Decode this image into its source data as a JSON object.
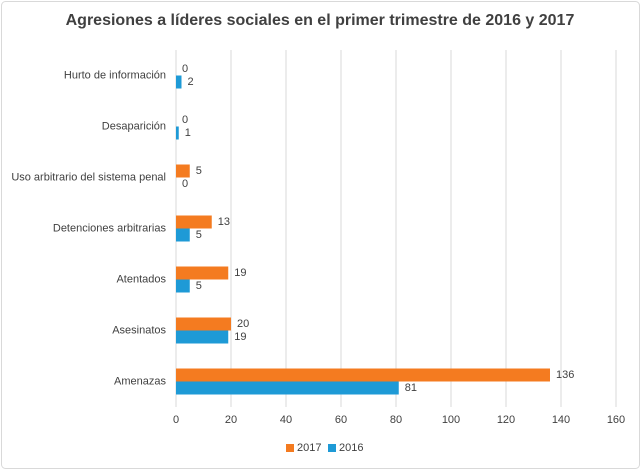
{
  "chart_data": {
    "type": "bar",
    "orientation": "horizontal",
    "title": "Agresiones a líderes sociales en el primer trimestre de 2016 y 2017",
    "categories": [
      "Hurto de información",
      "Desaparición",
      "Uso arbitrario del sistema penal",
      "Detenciones arbitrarias",
      "Atentados",
      "Asesinatos",
      "Amenazas"
    ],
    "series": [
      {
        "name": "2017",
        "color": "#F47B20",
        "values": [
          0,
          0,
          5,
          13,
          19,
          20,
          136
        ]
      },
      {
        "name": "2016",
        "color": "#1E9AD6",
        "values": [
          2,
          1,
          0,
          5,
          5,
          19,
          81
        ]
      }
    ],
    "xlim": [
      0,
      160
    ],
    "xticks": [
      0,
      20,
      40,
      60,
      80,
      100,
      120,
      140,
      160
    ],
    "grid": true,
    "legend": "bottom"
  }
}
